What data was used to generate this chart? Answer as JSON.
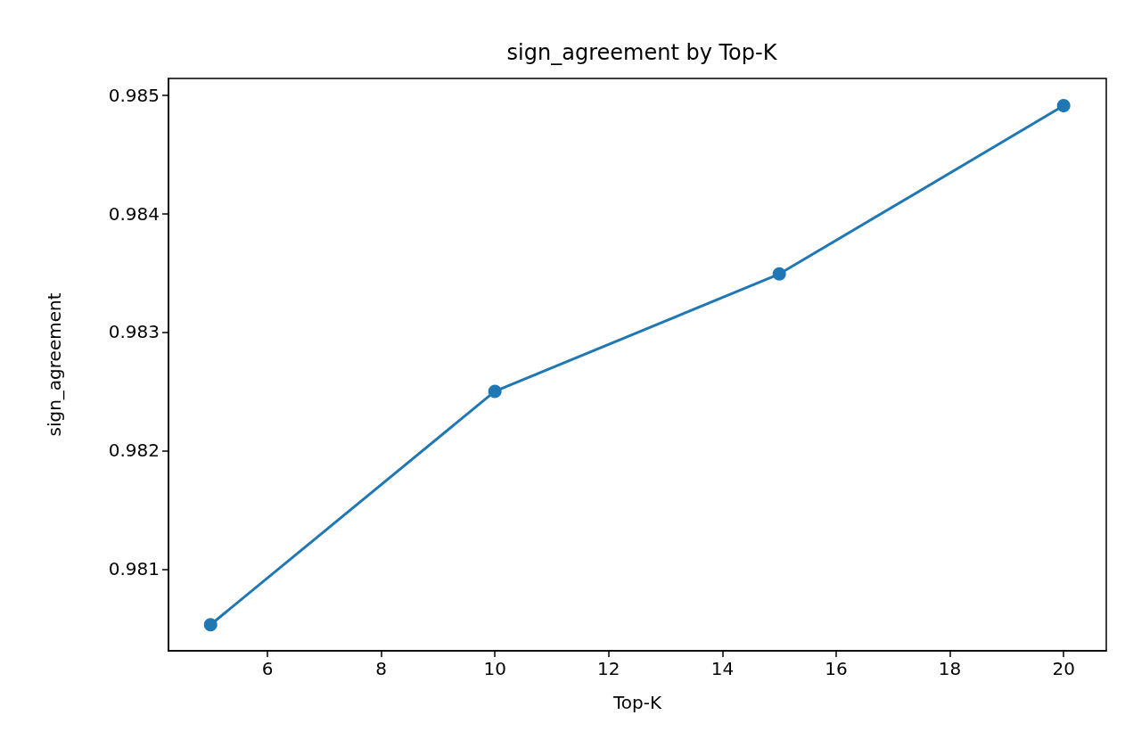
{
  "chart_data": {
    "type": "line",
    "title": "sign_agreement by Top-K",
    "xlabel": "Top-K",
    "ylabel": "sign_agreement",
    "x": [
      5,
      10,
      15,
      20
    ],
    "series": [
      {
        "color": "#1f77b4",
        "values": [
          0.98053,
          0.9825,
          0.98349,
          0.98491
        ]
      }
    ],
    "xlim": [
      4.26,
      20.75
    ],
    "xticks": [
      6,
      8,
      10,
      12,
      14,
      16,
      18,
      20
    ],
    "ylim": [
      0.98031,
      0.98514
    ],
    "yticks": [
      0.981,
      0.982,
      0.983,
      0.984,
      0.985
    ],
    "grid": false,
    "marker": "circle",
    "line_style": "solid"
  }
}
